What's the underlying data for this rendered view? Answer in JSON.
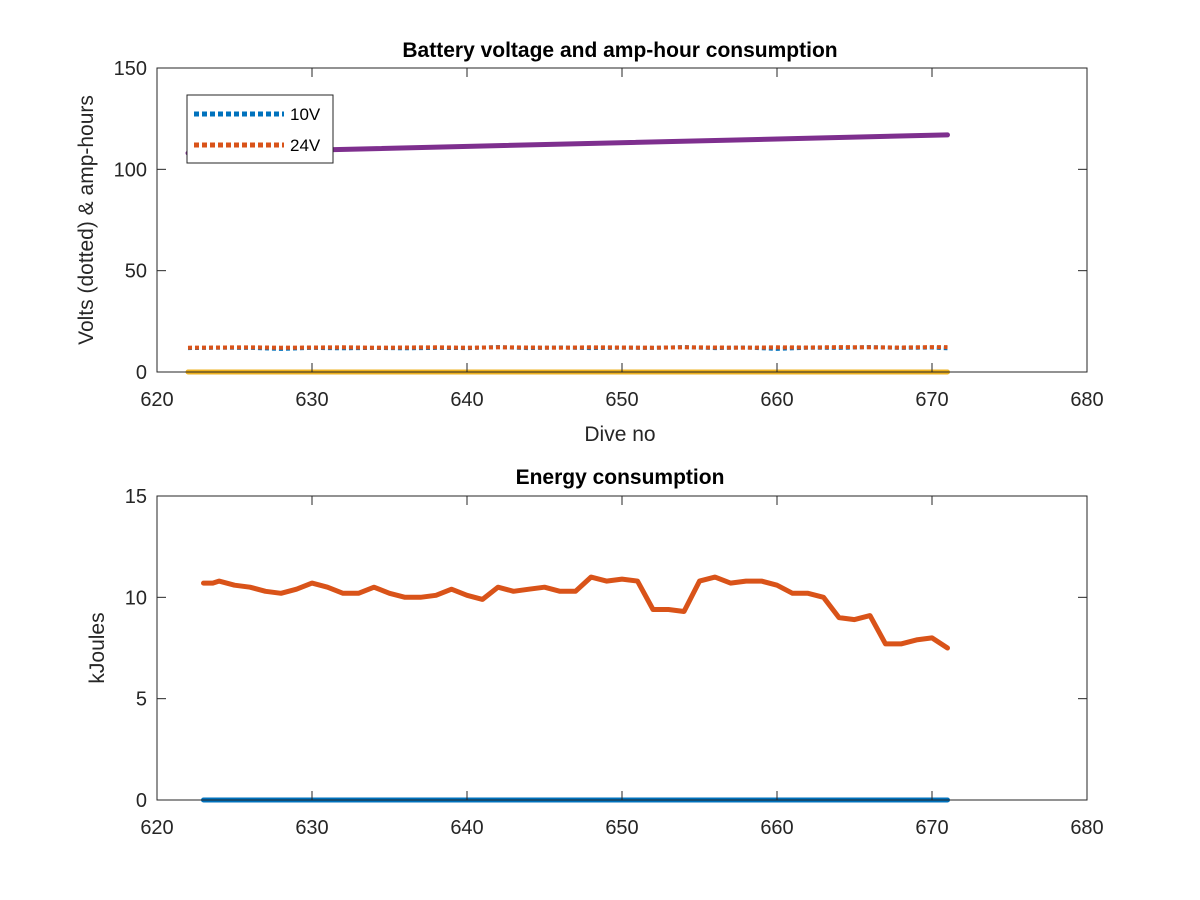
{
  "chart_data": [
    {
      "type": "line",
      "title": "Battery voltage and amp-hour consumption",
      "xlabel": "Dive no",
      "ylabel": "Volts (dotted) & amp-hours",
      "xlim": [
        620,
        680
      ],
      "ylim": [
        0,
        150
      ],
      "xticks": [
        "620",
        "630",
        "640",
        "650",
        "660",
        "670",
        "680"
      ],
      "yticks": [
        "0",
        "50",
        "100",
        "150"
      ],
      "grid": false,
      "legend_position": "top-left",
      "series": [
        {
          "name": "10V",
          "style": "dotted",
          "color": "#0072BD",
          "x": [
            622,
            624,
            626,
            628,
            630,
            632,
            634,
            636,
            638,
            640,
            642,
            644,
            646,
            648,
            650,
            652,
            654,
            656,
            658,
            660,
            662,
            664,
            666,
            668,
            670,
            671
          ],
          "y": [
            11.8,
            12.0,
            11.9,
            11.4,
            11.9,
            11.7,
            11.9,
            11.7,
            11.9,
            11.8,
            12.3,
            11.8,
            12.1,
            11.8,
            12.0,
            11.9,
            12.3,
            11.8,
            12.1,
            11.4,
            12.0,
            11.9,
            12.3,
            11.9,
            12.1,
            11.7
          ]
        },
        {
          "name": "24V",
          "style": "dotted",
          "color": "#D95319",
          "x": [
            622,
            624,
            626,
            628,
            630,
            632,
            634,
            636,
            638,
            640,
            642,
            644,
            646,
            648,
            650,
            652,
            654,
            656,
            658,
            660,
            662,
            664,
            666,
            668,
            670,
            671
          ],
          "y": [
            12.0,
            12.1,
            12.2,
            12.0,
            12.1,
            12.2,
            12.0,
            12.1,
            12.2,
            12.0,
            12.2,
            12.1,
            12.0,
            12.2,
            12.1,
            12.0,
            12.2,
            12.1,
            12.0,
            12.2,
            12.1,
            12.3,
            12.2,
            12.1,
            12.3,
            12.3
          ]
        },
        {
          "style": "solid",
          "color": "#7E2F8E",
          "x": [
            622,
            671
          ],
          "y": [
            108,
            117
          ]
        },
        {
          "style": "solid",
          "color": "#EDB120",
          "x": [
            622,
            671
          ],
          "y": [
            0,
            0
          ]
        }
      ]
    },
    {
      "type": "line",
      "title": "Energy consumption",
      "xlabel": "",
      "ylabel": "kJoules",
      "xlim": [
        620,
        680
      ],
      "ylim": [
        0,
        15
      ],
      "xticks": [
        "620",
        "630",
        "640",
        "650",
        "660",
        "670",
        "680"
      ],
      "yticks": [
        "0",
        "5",
        "10",
        "15"
      ],
      "grid": false,
      "series": [
        {
          "style": "solid",
          "color": "#0072BD",
          "x": [
            623,
            671
          ],
          "y": [
            0,
            0
          ]
        },
        {
          "style": "solid",
          "color": "#D95319",
          "x": [
            623,
            623.6,
            624,
            625,
            626,
            627,
            628,
            629,
            630,
            631,
            632,
            633,
            634,
            635,
            636,
            637,
            638,
            639,
            640,
            641,
            642,
            643,
            644,
            645,
            646,
            647,
            648,
            649,
            650,
            651,
            652,
            653,
            654,
            655,
            656,
            657,
            658,
            659,
            660,
            661,
            662,
            663,
            664,
            665,
            666,
            667,
            668,
            669,
            670,
            671
          ],
          "y": [
            10.7,
            10.7,
            10.8,
            10.6,
            10.5,
            10.3,
            10.2,
            10.4,
            10.7,
            10.5,
            10.2,
            10.2,
            10.5,
            10.2,
            10.0,
            10.0,
            10.1,
            10.4,
            10.1,
            9.9,
            10.5,
            10.3,
            10.4,
            10.5,
            10.3,
            10.3,
            11.0,
            10.8,
            10.9,
            10.8,
            9.4,
            9.4,
            9.3,
            10.8,
            11.0,
            10.7,
            10.8,
            10.8,
            10.6,
            10.2,
            10.2,
            10.0,
            9.0,
            8.9,
            9.1,
            7.7,
            7.7,
            7.9,
            8.0,
            7.5
          ]
        }
      ]
    }
  ]
}
